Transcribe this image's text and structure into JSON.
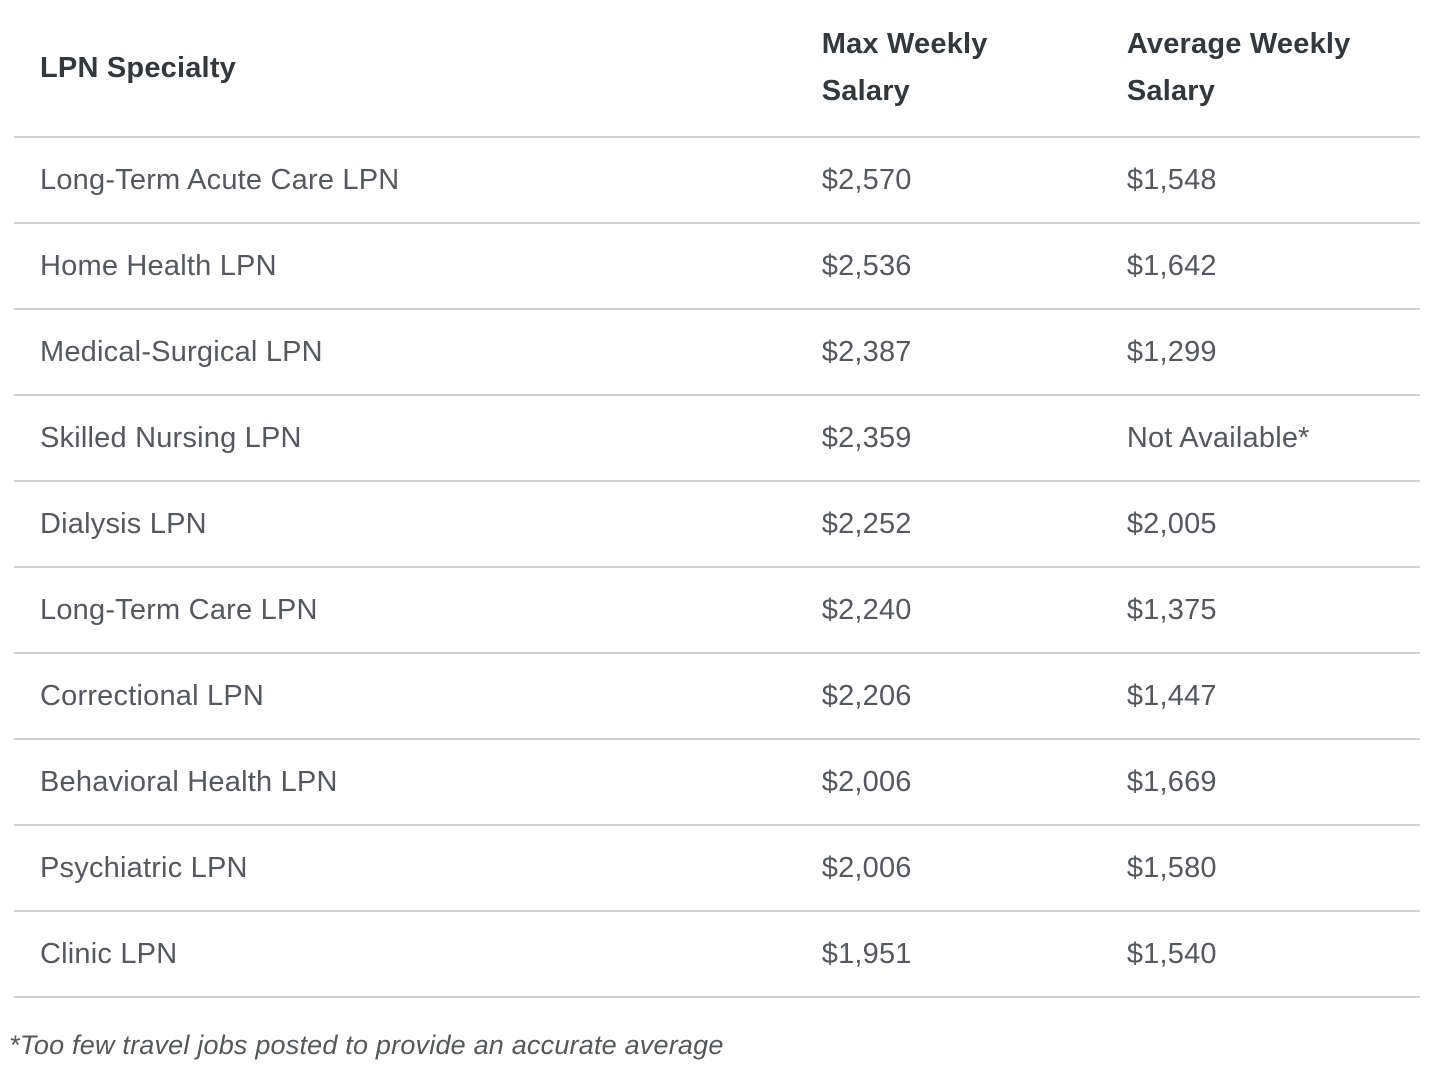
{
  "chart_data": {
    "type": "table",
    "columns": [
      "LPN Specialty",
      "Max Weekly Salary",
      "Average Weekly Salary"
    ],
    "rows": [
      [
        "Long-Term Acute Care LPN",
        "$2,570",
        "$1,548"
      ],
      [
        "Home Health LPN",
        "$2,536",
        "$1,642"
      ],
      [
        "Medical-Surgical LPN",
        "$2,387",
        "$1,299"
      ],
      [
        "Skilled Nursing LPN",
        "$2,359",
        "Not Available*"
      ],
      [
        "Dialysis LPN",
        "$2,252",
        "$2,005"
      ],
      [
        "Long-Term Care LPN",
        "$2,240",
        "$1,375"
      ],
      [
        "Correctional LPN",
        "$2,206",
        "$1,447"
      ],
      [
        "Behavioral Health LPN",
        "$2,006",
        "$1,669"
      ],
      [
        "Psychiatric LPN",
        "$2,006",
        "$1,580"
      ],
      [
        "Clinic LPN",
        "$1,951",
        "$1,540"
      ]
    ],
    "footnote": "*Too few travel jobs posted to provide an accurate average",
    "legend_position": "none",
    "grid": "horizontal-dividers-only"
  },
  "colors": {
    "background": "#ffffff",
    "header_text": "#33383d",
    "cell_text": "#55585e",
    "divider": "#d2d2d2",
    "footnote_text": "#55585a"
  }
}
